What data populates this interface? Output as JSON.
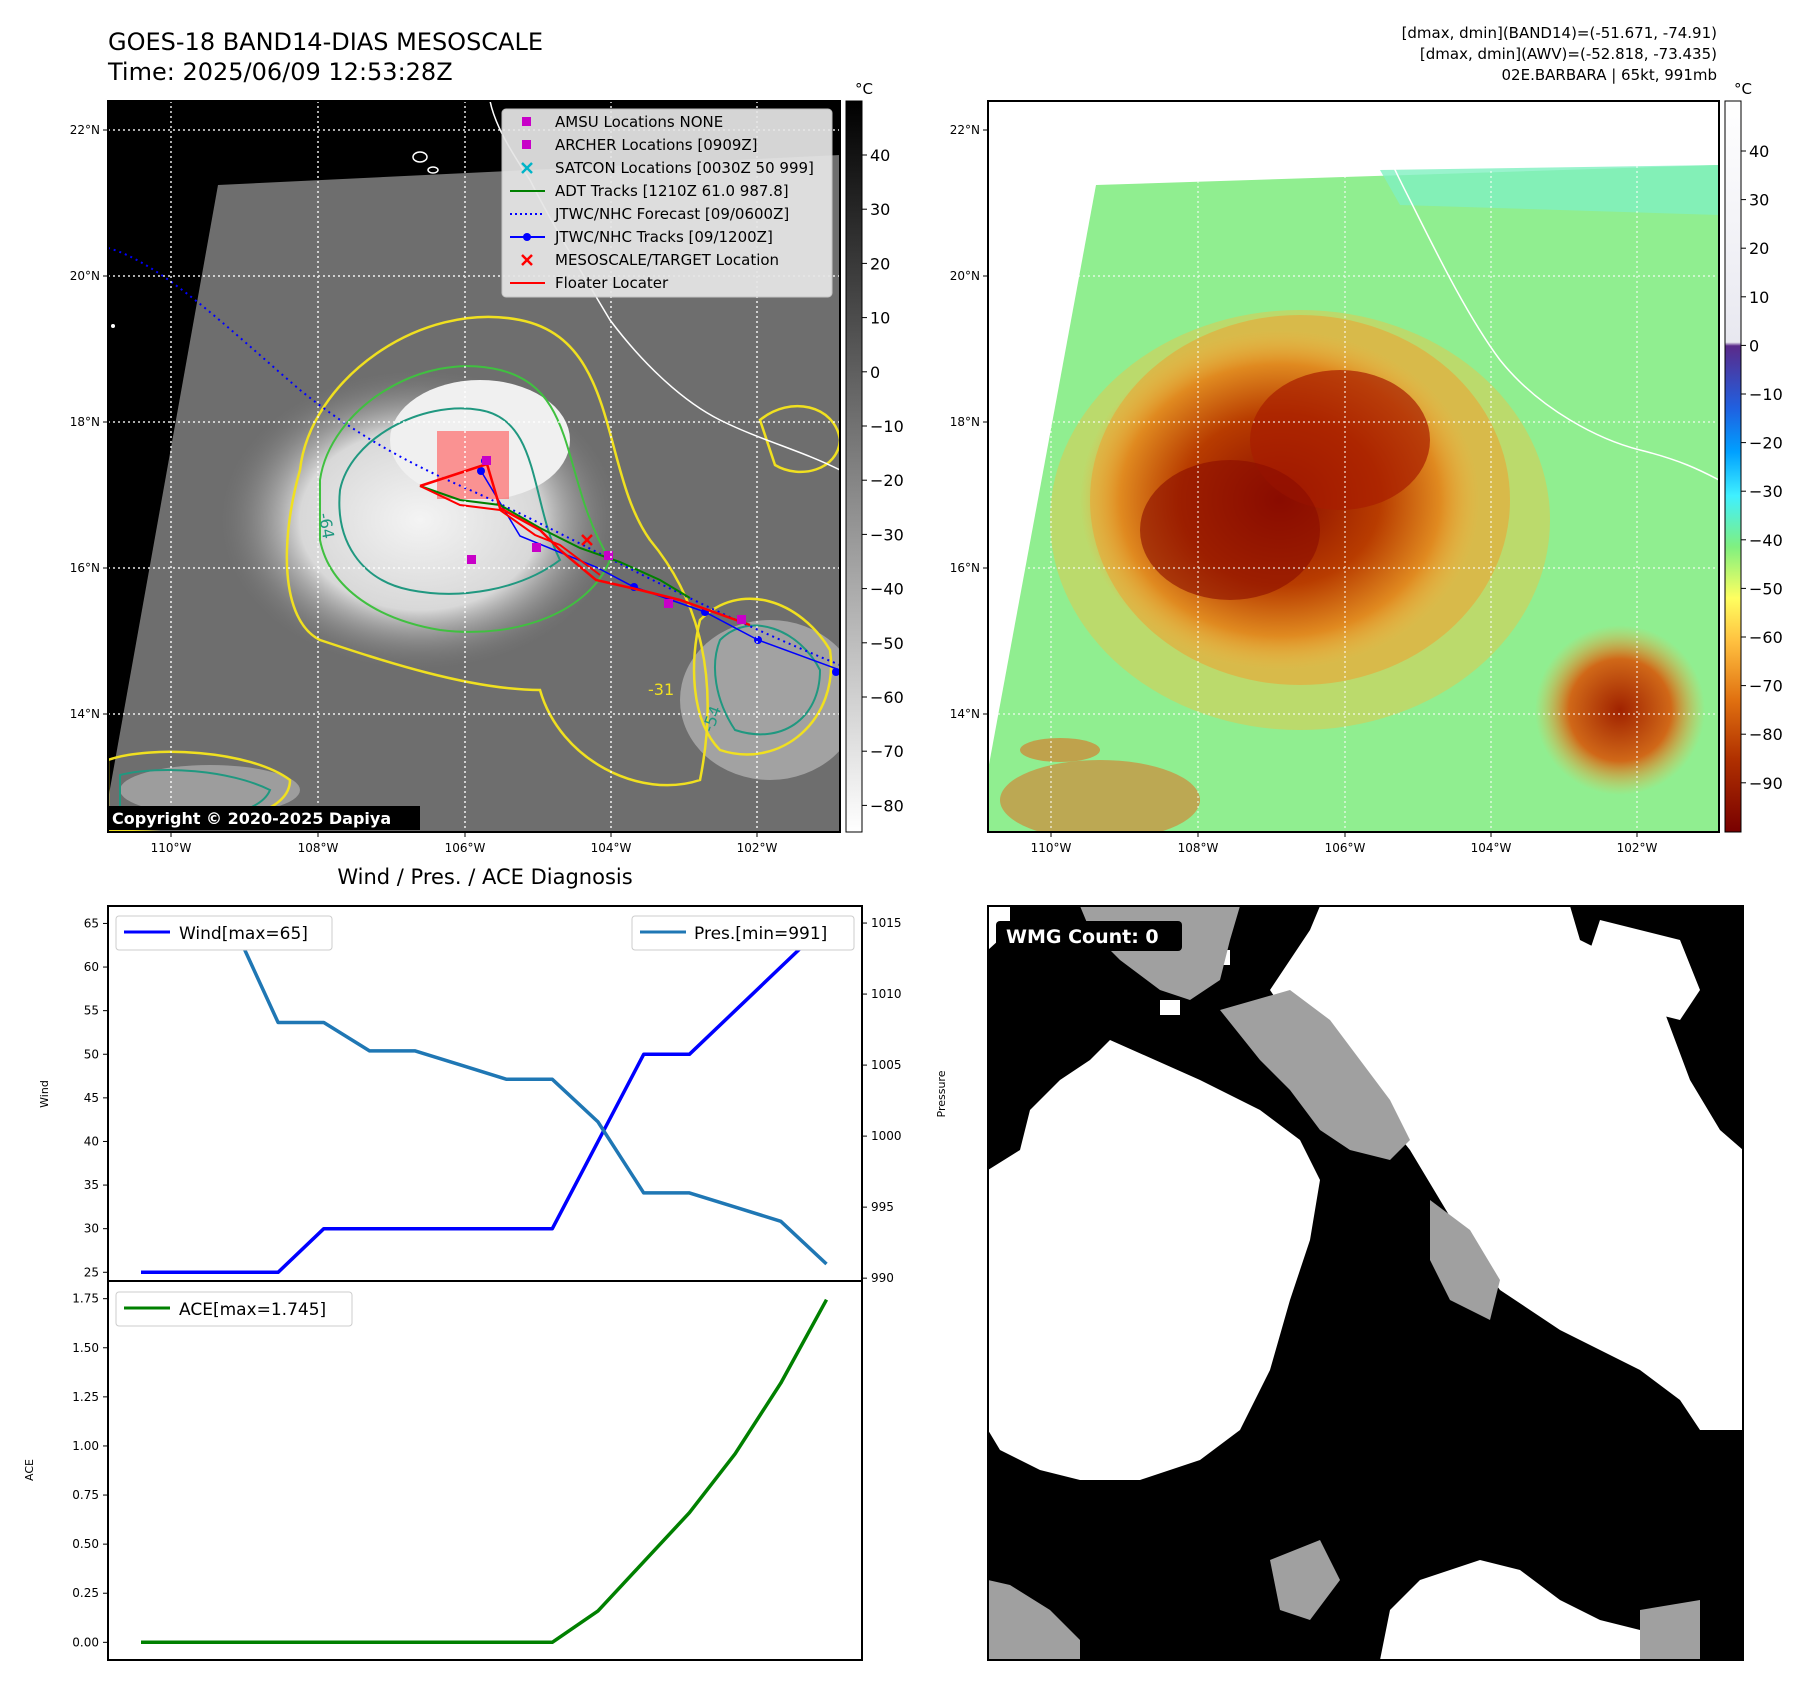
{
  "header": {
    "title_line1": "GOES-18 BAND14-DIAS MESOSCALE",
    "title_line2": "Time: 2025/06/09 12:53:28Z",
    "stats_line1": "[dmax, dmin](BAND14)=(-51.671, -74.91)",
    "stats_line2": "[dmax, dmin](AWV)=(-52.818, -73.435)",
    "stats_line3": "02E.BARBARA | 65kt, 991mb"
  },
  "map": {
    "lon_ticks": [
      "110°W",
      "108°W",
      "106°W",
      "104°W",
      "102°W"
    ],
    "lat_ticks": [
      "22°N",
      "20°N",
      "18°N",
      "16°N",
      "14°N"
    ],
    "copyright": "Copyright © 2020-2025 Dapiya",
    "contour_labels": [
      "-31",
      "-54",
      "-64"
    ],
    "legend": [
      {
        "label": "AMSU Locations NONE",
        "symbol": "square",
        "color": "#c800c8"
      },
      {
        "label": "ARCHER Locations [0909Z]",
        "symbol": "square",
        "color": "#c800c8"
      },
      {
        "label": "SATCON Locations [0030Z 50 999]",
        "symbol": "x",
        "color": "#00b4c8"
      },
      {
        "label": "ADT Tracks [1210Z 61.0 987.8]",
        "symbol": "line",
        "color": "#008000"
      },
      {
        "label": "JTWC/NHC Forecast [09/0600Z]",
        "symbol": "dotted",
        "color": "#0000ff"
      },
      {
        "label": "JTWC/NHC Tracks [09/1200Z]",
        "symbol": "line-dot",
        "color": "#0000ff"
      },
      {
        "label": "MESOSCALE/TARGET Location",
        "symbol": "x",
        "color": "#ff0000"
      },
      {
        "label": "Floater Locater",
        "symbol": "line",
        "color": "#ff0000"
      }
    ]
  },
  "colorbar_gray": {
    "unit": "°C",
    "ticks": [
      "40",
      "30",
      "20",
      "10",
      "0",
      "−10",
      "−20",
      "−30",
      "−40",
      "−50",
      "−60",
      "−70",
      "−80"
    ]
  },
  "colorbar_color": {
    "unit": "°C",
    "ticks": [
      "40",
      "30",
      "20",
      "10",
      "0",
      "−10",
      "−20",
      "−30",
      "−40",
      "−50",
      "−60",
      "−70",
      "−80",
      "−90"
    ]
  },
  "wmg": {
    "label": "WMG Count: 0"
  },
  "chart_data": [
    {
      "type": "line",
      "title": "Wind / Pres. / ACE Diagnosis",
      "ylabel": "Wind",
      "y2label": "Pressure",
      "ylim": [
        24,
        67
      ],
      "y2lim": [
        989.8,
        1016.2
      ],
      "yticks": [
        25,
        30,
        35,
        40,
        45,
        50,
        55,
        60,
        65
      ],
      "y2ticks": [
        990,
        995,
        1000,
        1005,
        1010,
        1015
      ],
      "series": [
        {
          "name": "Wind[max=65]",
          "axis": "left",
          "color": "#0000ff",
          "values": [
            25,
            25,
            25,
            25,
            30,
            30,
            30,
            30,
            30,
            30,
            40,
            50,
            50,
            55,
            60,
            65
          ]
        },
        {
          "name": "Pres.[min=991]",
          "axis": "right",
          "color": "#1f77b4",
          "values": [
            1015,
            1015,
            1015,
            1008,
            1008,
            1006,
            1006,
            1005,
            1004,
            1004,
            1001,
            996,
            996,
            995,
            994,
            991
          ]
        }
      ]
    },
    {
      "type": "line",
      "ylabel": "ACE",
      "ylim": [
        -0.09,
        1.84
      ],
      "yticks": [
        "0.00",
        "0.25",
        "0.50",
        "0.75",
        "1.00",
        "1.25",
        "1.50",
        "1.75"
      ],
      "series": [
        {
          "name": "ACE[max=1.745]",
          "color": "#008000",
          "values": [
            0,
            0,
            0,
            0,
            0,
            0,
            0,
            0,
            0,
            0,
            0.16,
            0.41,
            0.66,
            0.96,
            1.32,
            1.745
          ]
        }
      ]
    }
  ]
}
